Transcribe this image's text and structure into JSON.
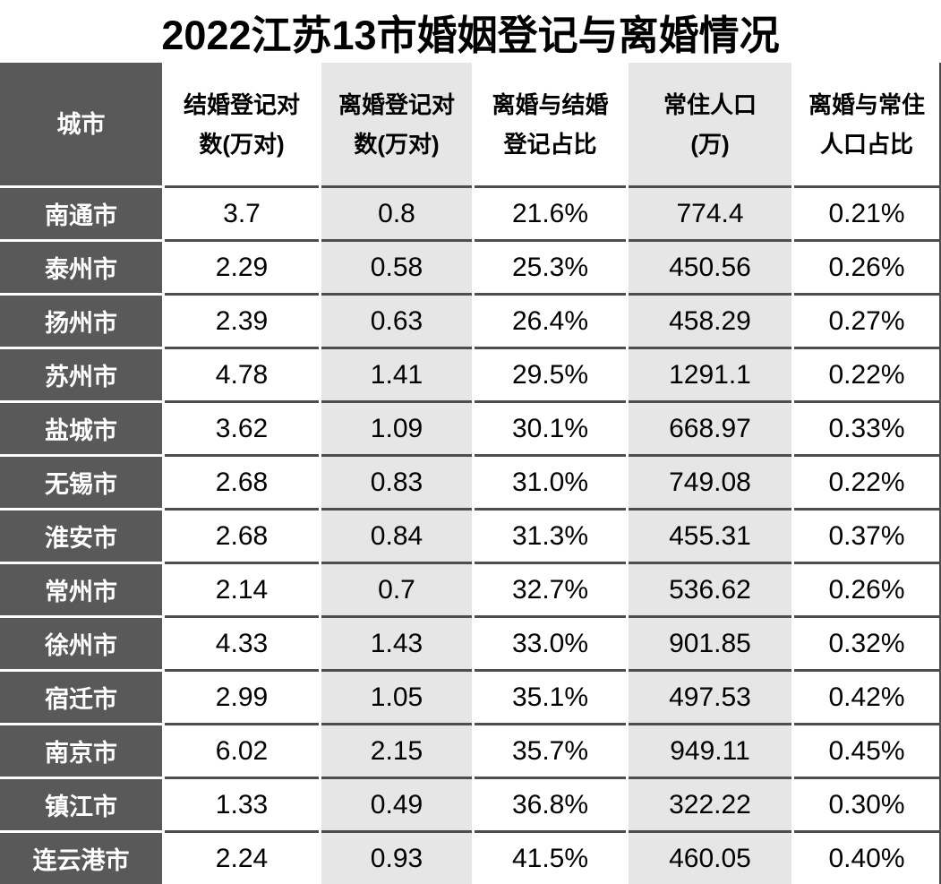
{
  "chart_data": {
    "type": "table",
    "title": "2022江苏13市婚姻登记与离婚情况",
    "columns": [
      {
        "key": "city",
        "label": "城市"
      },
      {
        "key": "marriage_registrations_10k_pairs",
        "label": "结婚登记对\n数(万对)"
      },
      {
        "key": "divorce_registrations_10k_pairs",
        "label": "离婚登记对\n数(万对)"
      },
      {
        "key": "divorce_to_marriage_ratio",
        "label": "离婚与结婚\n登记占比"
      },
      {
        "key": "resident_population_10k",
        "label": "常住人口\n(万)"
      },
      {
        "key": "divorce_to_population_ratio",
        "label": "离婚与常住\n人口占比"
      }
    ],
    "rows": [
      [
        "南通市",
        "3.7",
        "0.8",
        "21.6%",
        "774.4",
        "0.21%"
      ],
      [
        "泰州市",
        "2.29",
        "0.58",
        "25.3%",
        "450.56",
        "0.26%"
      ],
      [
        "扬州市",
        "2.39",
        "0.63",
        "26.4%",
        "458.29",
        "0.27%"
      ],
      [
        "苏州市",
        "4.78",
        "1.41",
        "29.5%",
        "1291.1",
        "0.22%"
      ],
      [
        "盐城市",
        "3.62",
        "1.09",
        "30.1%",
        "668.97",
        "0.33%"
      ],
      [
        "无锡市",
        "2.68",
        "0.83",
        "31.0%",
        "749.08",
        "0.22%"
      ],
      [
        "淮安市",
        "2.68",
        "0.84",
        "31.3%",
        "455.31",
        "0.37%"
      ],
      [
        "常州市",
        "2.14",
        "0.7",
        "32.7%",
        "536.62",
        "0.26%"
      ],
      [
        "徐州市",
        "4.33",
        "1.43",
        "33.0%",
        "901.85",
        "0.32%"
      ],
      [
        "宿迁市",
        "2.99",
        "1.05",
        "35.1%",
        "497.53",
        "0.42%"
      ],
      [
        "南京市",
        "6.02",
        "2.15",
        "35.7%",
        "949.11",
        "0.45%"
      ],
      [
        "镇江市",
        "1.33",
        "0.49",
        "36.8%",
        "322.22",
        "0.30%"
      ],
      [
        "连云港市",
        "2.24",
        "0.93",
        "41.5%",
        "460.05",
        "0.40%"
      ]
    ]
  },
  "colors": {
    "header_dark": "#595959",
    "column_shade": "#e7e6e6",
    "grid_line": "#4d4d4d",
    "text": "#000000",
    "city_text": "#ffffff",
    "background": "#ffffff"
  }
}
